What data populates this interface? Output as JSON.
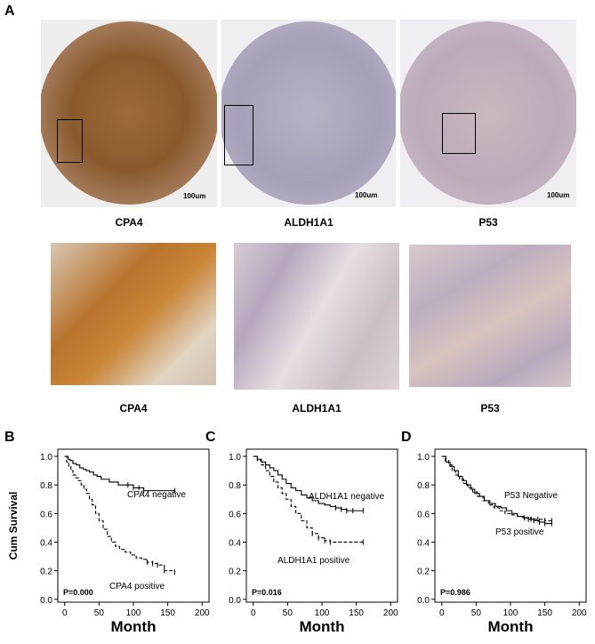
{
  "panelA": {
    "letter": "A",
    "top_row": [
      {
        "label": "CPA4",
        "scalebar": "100um"
      },
      {
        "label": "ALDH1A1",
        "scalebar": "100um"
      },
      {
        "label": "P53",
        "scalebar": "100um"
      }
    ],
    "bottom_row": [
      {
        "label": "CPA4"
      },
      {
        "label": "ALDH1A1"
      },
      {
        "label": "P53"
      }
    ]
  },
  "chart_data": [
    {
      "type": "line",
      "panel": "B",
      "ylabel": "Cum Survival",
      "xlabel": "Month",
      "xlim": [
        -10,
        210
      ],
      "ylim": [
        -0.02,
        1.05
      ],
      "xticks": [
        0,
        50,
        100,
        150,
        200
      ],
      "yticks": [
        0.0,
        0.2,
        0.4,
        0.6,
        0.8,
        1.0
      ],
      "p_value": "P=0.000",
      "series": [
        {
          "name": "CPA4 negative",
          "style": "solid",
          "x": [
            0,
            5,
            8,
            12,
            17,
            22,
            27,
            31,
            36,
            42,
            47,
            53,
            59,
            65,
            72,
            78,
            84,
            92,
            100,
            108,
            115,
            160
          ],
          "y": [
            1.0,
            0.98,
            0.97,
            0.95,
            0.94,
            0.92,
            0.91,
            0.9,
            0.89,
            0.87,
            0.86,
            0.84,
            0.84,
            0.82,
            0.82,
            0.8,
            0.8,
            0.8,
            0.78,
            0.78,
            0.76,
            0.76
          ]
        },
        {
          "name": "CPA4 positive",
          "style": "dashed",
          "x": [
            0,
            3,
            6,
            9,
            12,
            16,
            20,
            24,
            28,
            32,
            36,
            40,
            45,
            50,
            56,
            62,
            68,
            74,
            80,
            88,
            96,
            104,
            112,
            120,
            128,
            135,
            145,
            160
          ],
          "y": [
            1.0,
            0.96,
            0.93,
            0.9,
            0.87,
            0.85,
            0.83,
            0.8,
            0.77,
            0.74,
            0.7,
            0.66,
            0.6,
            0.55,
            0.49,
            0.44,
            0.4,
            0.37,
            0.35,
            0.33,
            0.31,
            0.29,
            0.28,
            0.26,
            0.25,
            0.24,
            0.2,
            0.19
          ]
        }
      ]
    },
    {
      "type": "line",
      "panel": "C",
      "xlabel": "Month",
      "xlim": [
        -10,
        210
      ],
      "ylim": [
        -0.02,
        1.05
      ],
      "xticks": [
        0,
        50,
        100,
        150,
        200
      ],
      "yticks": [
        0.0,
        0.2,
        0.4,
        0.6,
        0.8,
        1.0
      ],
      "p_value": "P=0.016",
      "series": [
        {
          "name": "ALDH1A1 negative",
          "style": "solid",
          "x": [
            0,
            6,
            12,
            18,
            24,
            30,
            36,
            42,
            48,
            55,
            62,
            70,
            78,
            86,
            95,
            104,
            112,
            120,
            128,
            136,
            145,
            160
          ],
          "y": [
            1.0,
            0.98,
            0.96,
            0.94,
            0.92,
            0.9,
            0.87,
            0.84,
            0.81,
            0.78,
            0.76,
            0.73,
            0.71,
            0.69,
            0.67,
            0.66,
            0.65,
            0.64,
            0.63,
            0.62,
            0.62,
            0.62
          ]
        },
        {
          "name": "ALDH1A1 positive",
          "style": "dashed",
          "x": [
            0,
            6,
            12,
            18,
            24,
            30,
            36,
            42,
            48,
            55,
            62,
            70,
            78,
            86,
            95,
            104,
            112,
            160
          ],
          "y": [
            1.0,
            0.97,
            0.94,
            0.9,
            0.86,
            0.82,
            0.78,
            0.74,
            0.7,
            0.65,
            0.6,
            0.55,
            0.5,
            0.46,
            0.43,
            0.41,
            0.4,
            0.4
          ]
        }
      ]
    },
    {
      "type": "line",
      "panel": "D",
      "xlabel": "Month",
      "xlim": [
        -10,
        210
      ],
      "ylim": [
        -0.02,
        1.05
      ],
      "xticks": [
        0,
        50,
        100,
        150,
        200
      ],
      "yticks": [
        0.0,
        0.2,
        0.4,
        0.6,
        0.8,
        1.0
      ],
      "p_value": "P=0.986",
      "series": [
        {
          "name": "P53 Negative",
          "style": "dashed",
          "x": [
            0,
            5,
            10,
            15,
            20,
            26,
            32,
            38,
            45,
            52,
            60,
            68,
            76,
            84,
            92,
            100,
            110,
            120,
            130,
            140,
            150,
            160
          ],
          "y": [
            1.0,
            0.97,
            0.94,
            0.9,
            0.87,
            0.84,
            0.81,
            0.78,
            0.75,
            0.72,
            0.69,
            0.66,
            0.64,
            0.62,
            0.6,
            0.59,
            0.58,
            0.57,
            0.56,
            0.56,
            0.55,
            0.55
          ]
        },
        {
          "name": "P53 positive",
          "style": "solid",
          "x": [
            0,
            6,
            12,
            18,
            24,
            30,
            36,
            42,
            48,
            55,
            62,
            70,
            78,
            86,
            94,
            102,
            110,
            118,
            126,
            134,
            142,
            150,
            160
          ],
          "y": [
            1.0,
            0.96,
            0.93,
            0.9,
            0.86,
            0.83,
            0.8,
            0.77,
            0.74,
            0.72,
            0.69,
            0.67,
            0.65,
            0.64,
            0.62,
            0.6,
            0.58,
            0.57,
            0.56,
            0.55,
            0.54,
            0.53,
            0.53
          ]
        }
      ]
    }
  ],
  "panel_letters": {
    "B": "B",
    "C": "C",
    "D": "D"
  }
}
